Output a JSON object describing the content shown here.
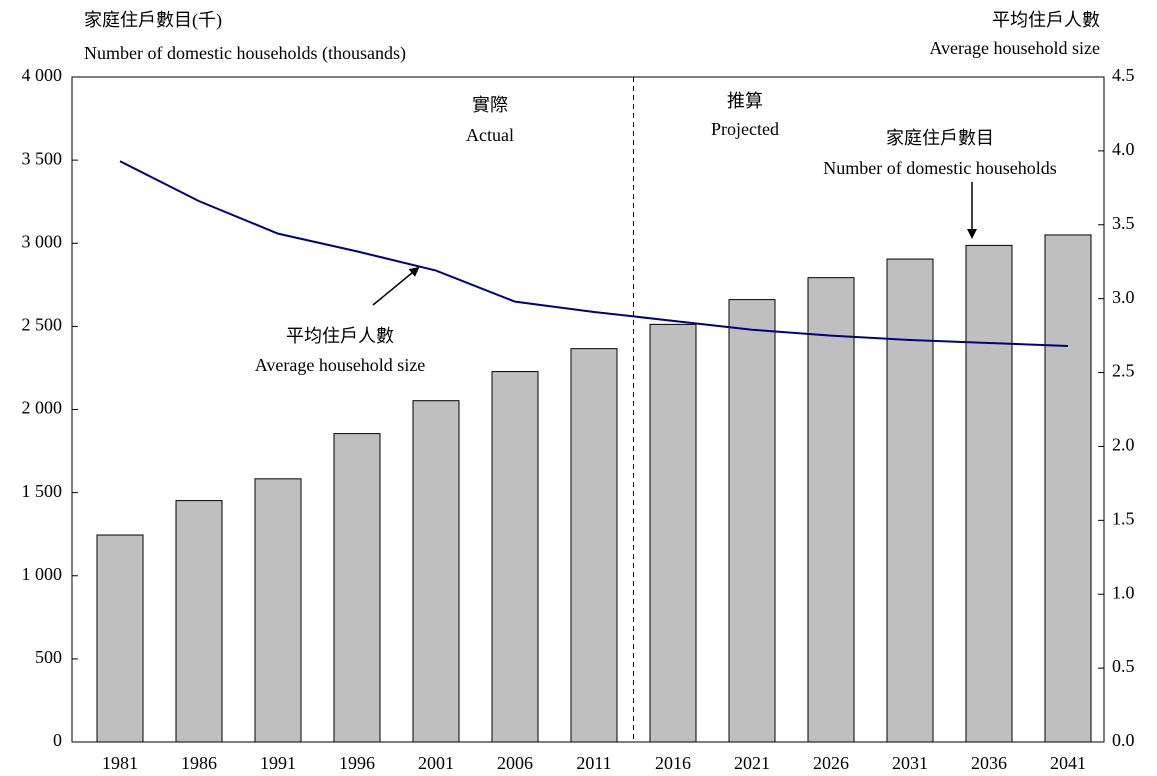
{
  "chart_data": {
    "type": "bar-line",
    "title": "家庭住戶數目(千)",
    "subtitle": "Number of domestic households (thousands)",
    "y2_title": "平均住戶人數",
    "y2_subtitle": "Average household size",
    "annotations": [
      "實際",
      "Actual",
      "推算",
      "Projected",
      "家庭住戶數目",
      "Number of domestic households",
      "平均住戶人數",
      "Average household size"
    ],
    "categories": [
      "1981",
      "1986",
      "1991",
      "1996",
      "2001",
      "2006",
      "2011",
      "2016",
      "2021",
      "2026",
      "2031",
      "2036",
      "2041"
    ],
    "series": [
      {
        "name": "家庭住戶數目",
        "type": "bar",
        "color": "#bfbfbf",
        "values": [
          1245,
          1452,
          1583,
          1855,
          2053,
          2228,
          2366,
          2512,
          2661,
          2793,
          2905,
          2987,
          3050
        ]
      },
      {
        "name": "平均住戶人數",
        "type": "line",
        "axis": "y2",
        "color": "#000080",
        "values": [
          3.93,
          3.66,
          3.44,
          3.32,
          3.19,
          2.98,
          2.91,
          2.85,
          2.79,
          2.75,
          2.72,
          2.7,
          2.68
        ]
      }
    ],
    "ylim": [
      0,
      4000
    ],
    "yticks": [
      0,
      500,
      {
        "value": 1000,
        "label": "1 000"
      },
      {
        "value": 1500,
        "label": "1 500"
      },
      {
        "value": 2000,
        "label": "2 000"
      },
      {
        "value": 2500,
        "label": "2 500"
      },
      {
        "value": 3000,
        "label": "3 000"
      },
      {
        "value": 3500,
        "label": "3 500"
      },
      {
        "value": 4000,
        "label": "4 000"
      }
    ],
    "y2lim": [
      0,
      4.5
    ],
    "y2ticks": [
      {
        "value": 0,
        "label": "0.0"
      },
      0.5,
      {
        "value": 1,
        "label": "1.0"
      },
      1.5,
      {
        "value": 2,
        "label": "2.0"
      },
      2.5,
      {
        "value": 3,
        "label": "3.0"
      },
      3.5,
      {
        "value": 4,
        "label": "4.0"
      },
      4.5
    ],
    "grid": false
  }
}
